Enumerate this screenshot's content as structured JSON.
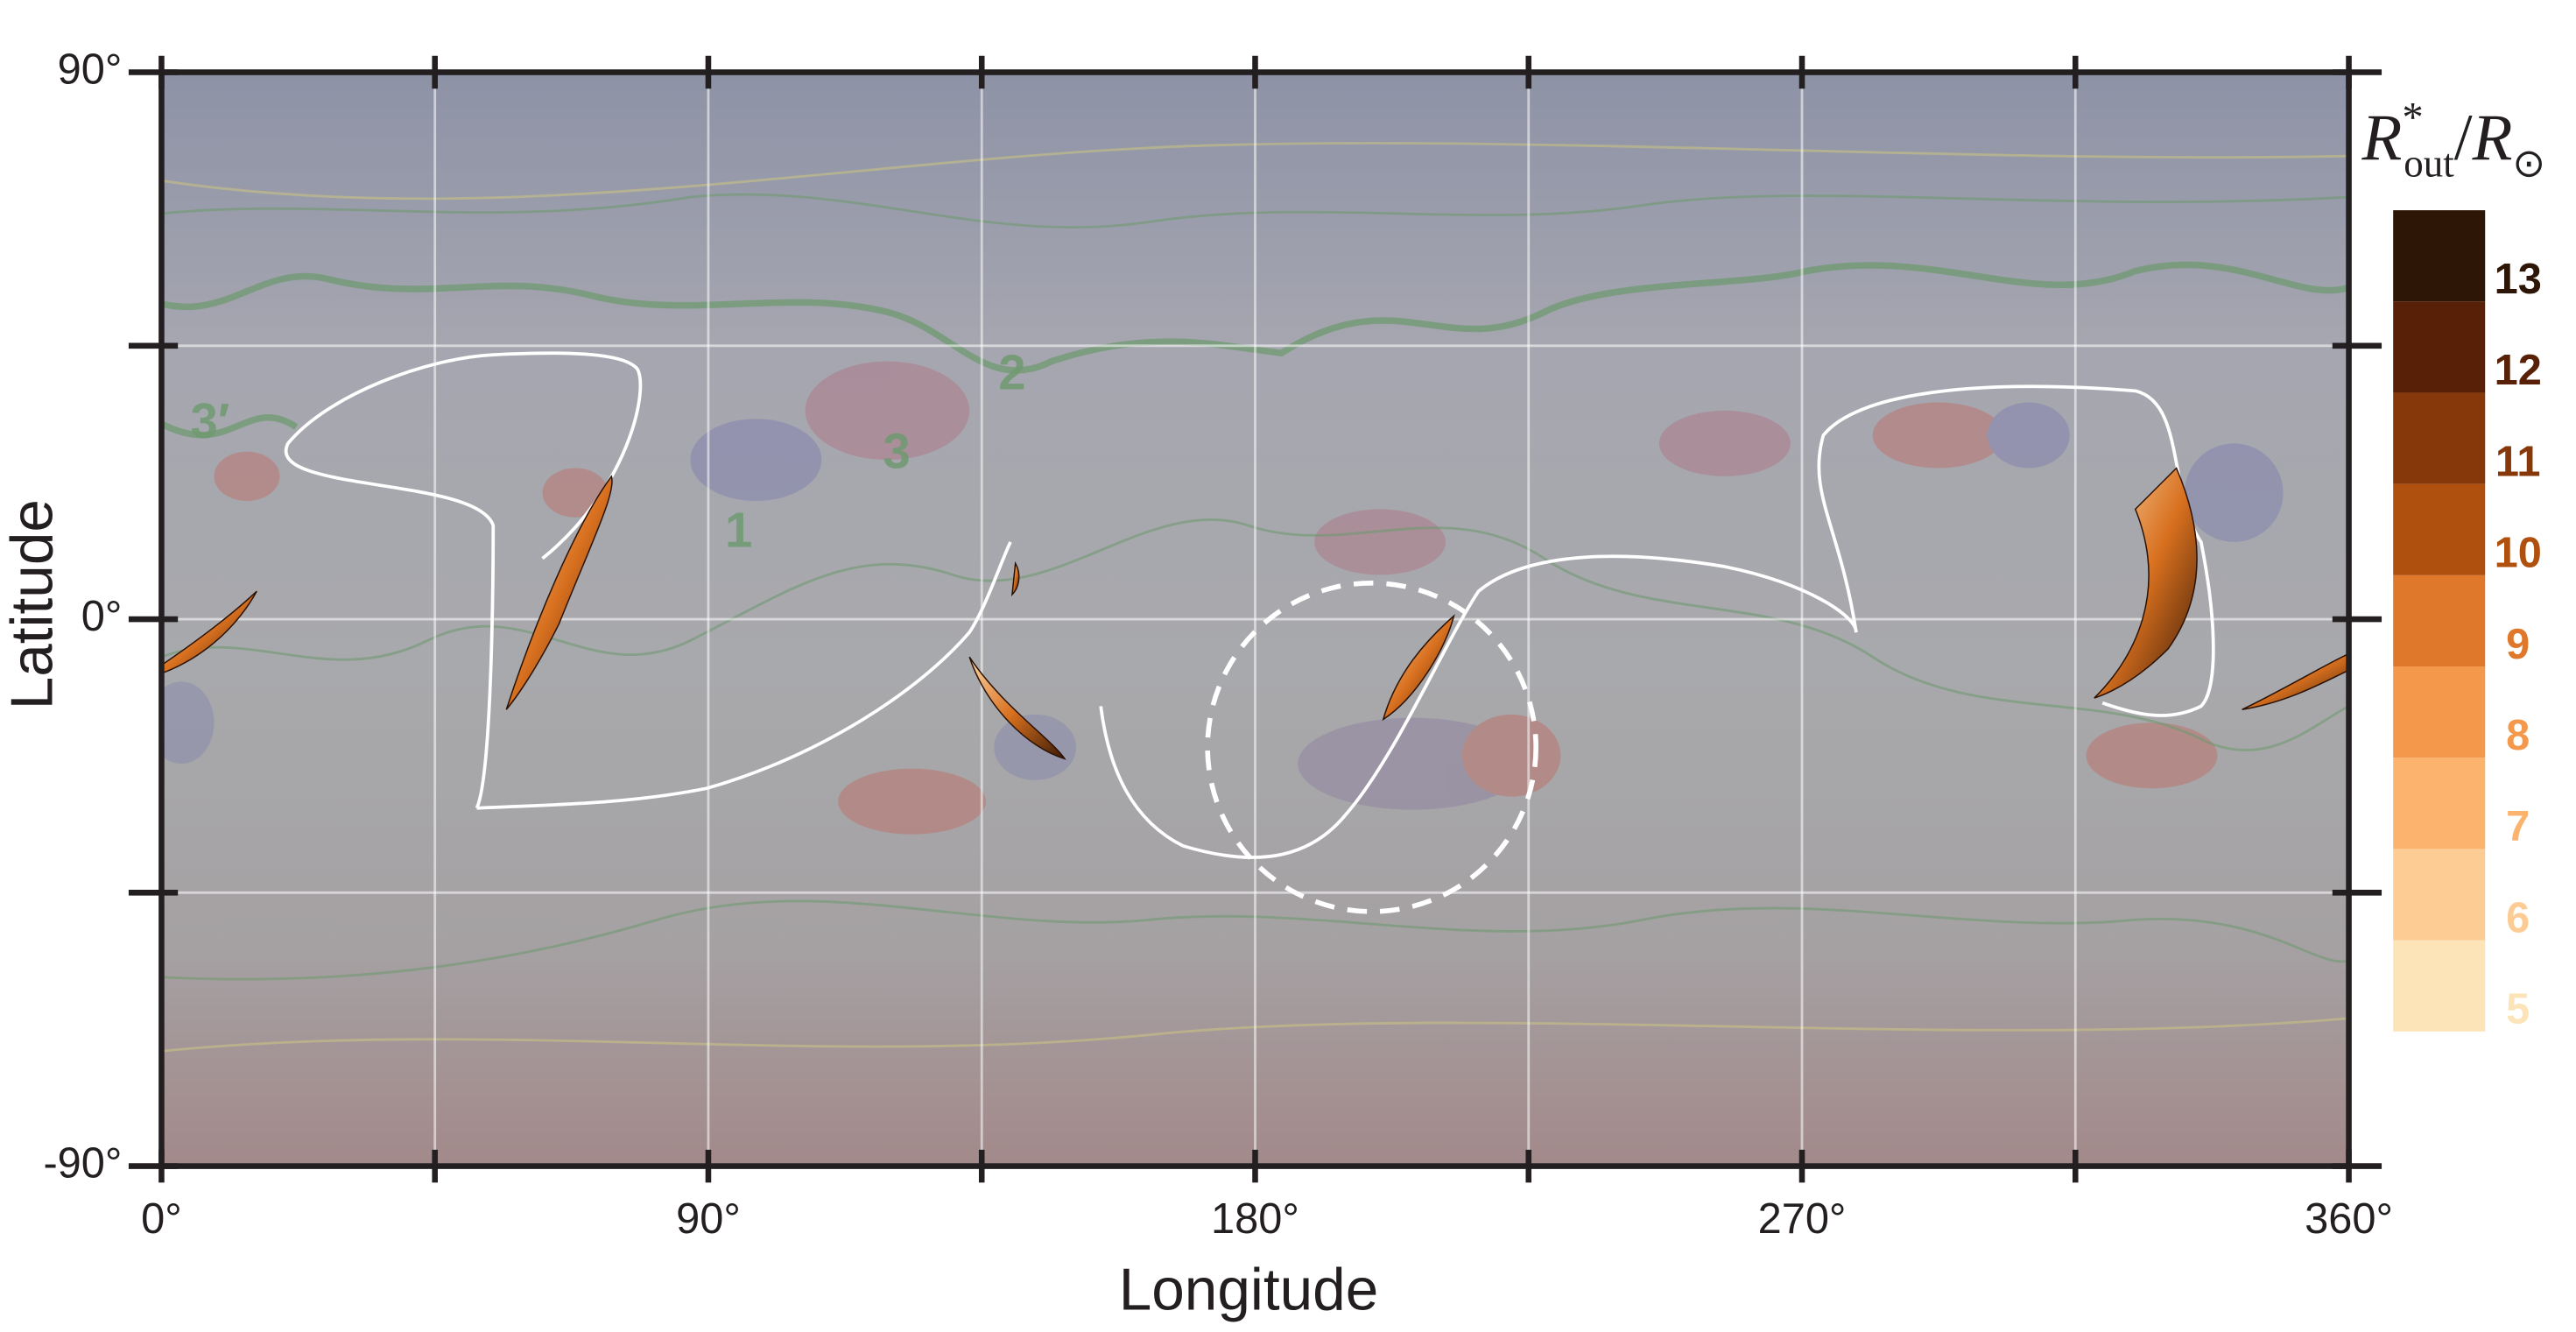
{
  "chart_data": {
    "type": "map",
    "xlabel": "Longitude",
    "ylabel": "Latitude",
    "xlim": [
      0,
      360
    ],
    "xticks": [
      {
        "value": 0,
        "label": "0°"
      },
      {
        "value": 90,
        "label": "90°"
      },
      {
        "value": 180,
        "label": "180°"
      },
      {
        "value": 270,
        "label": "270°"
      },
      {
        "value": 360,
        "label": "360°"
      }
    ],
    "xminorticks": [
      45,
      135,
      225,
      315
    ],
    "ylim": [
      -90,
      90
    ],
    "yticks": [
      {
        "value": -90,
        "label": "-90°"
      },
      {
        "value": 0,
        "label": "0°"
      },
      {
        "value": 90,
        "label": "90°"
      }
    ],
    "yminorticks": [
      -45,
      45
    ],
    "grid": true,
    "colorbar": {
      "title": [
        "R",
        "*",
        "out",
        "/",
        "R",
        "⊙"
      ],
      "levels": [
        5,
        6,
        7,
        8,
        9,
        10,
        11,
        12,
        13
      ],
      "colors": [
        "#fde3b8",
        "#fdcc94",
        "#fbb36d",
        "#f4984c",
        "#df782a",
        "#b0500f",
        "#86380a",
        "#582107",
        "#2d1606"
      ]
    },
    "annotations": [
      {
        "text": "3′",
        "x": 8,
        "y": 32
      },
      {
        "text": "2",
        "x": 140,
        "y": 40
      },
      {
        "text": "3",
        "x": 121,
        "y": 27
      },
      {
        "text": "1",
        "x": 95,
        "y": 14
      }
    ]
  }
}
